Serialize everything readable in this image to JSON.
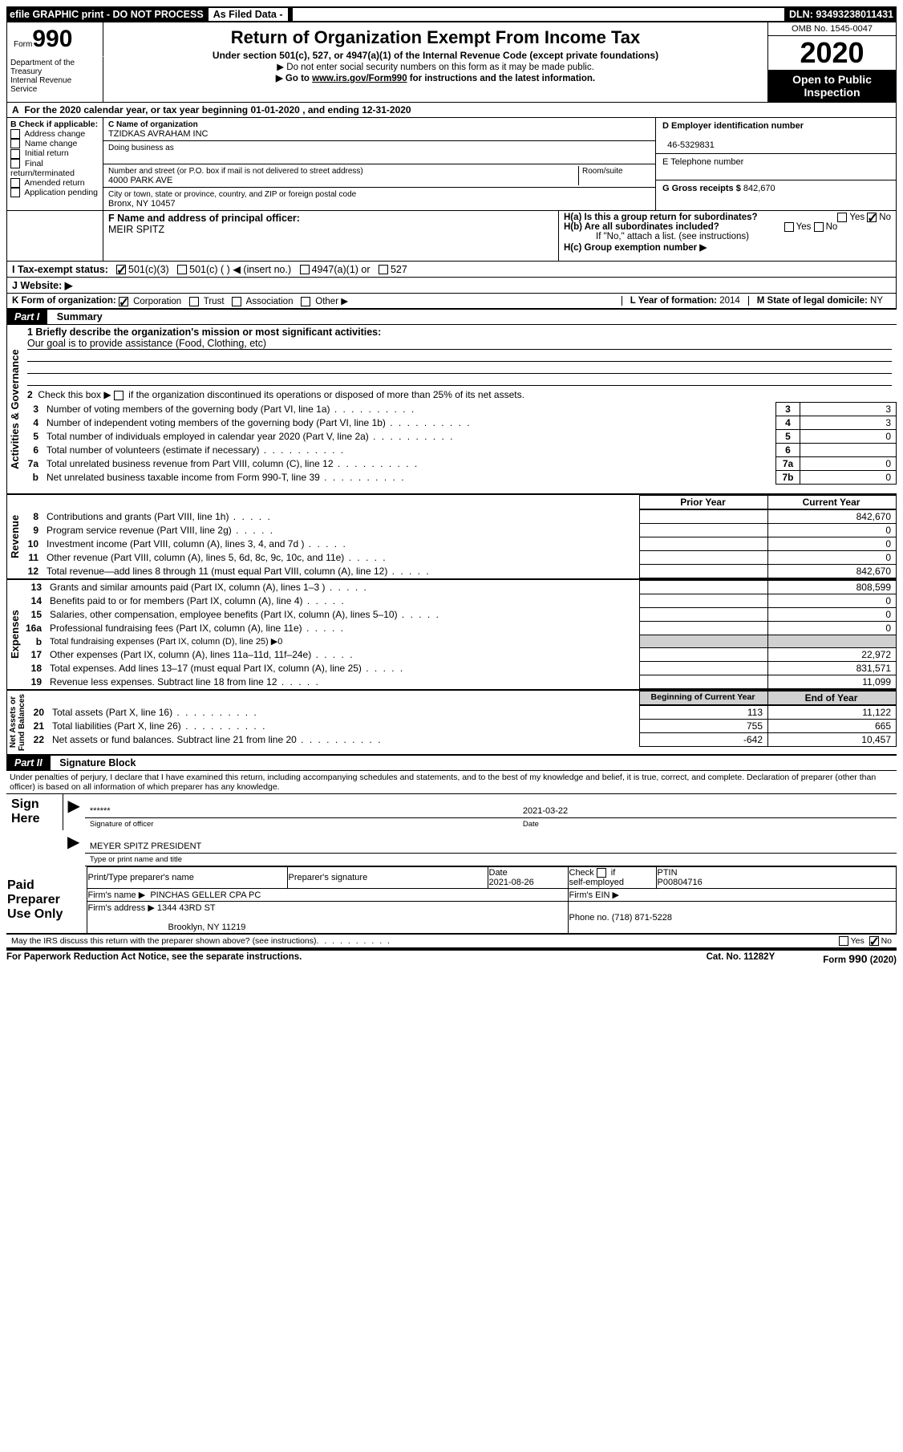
{
  "topbar": {
    "efile": "efile GRAPHIC print - DO NOT PROCESS",
    "asfiled": "As Filed Data -",
    "dln_label": "DLN:",
    "dln": "93493238011431"
  },
  "header": {
    "form_small": "Form",
    "form_big": "990",
    "dept": "Department of the Treasury\nInternal Revenue Service",
    "title": "Return of Organization Exempt From Income Tax",
    "sub1": "Under section 501(c), 527, or 4947(a)(1) of the Internal Revenue Code (except private foundations)",
    "sub2": "▶ Do not enter social security numbers on this form as it may be made public.",
    "sub3_pre": "▶ Go to ",
    "sub3_link": "www.irs.gov/Form990",
    "sub3_post": " for instructions and the latest information.",
    "omb": "OMB No. 1545-0047",
    "year": "2020",
    "open": "Open to Public Inspection"
  },
  "A": {
    "text_pre": "For the 2020 calendar year, or tax year beginning ",
    "begin": "01-01-2020",
    "mid": " , and ending ",
    "end": "12-31-2020"
  },
  "B": {
    "label": "B Check if applicable:",
    "opts": [
      "Address change",
      "Name change",
      "Initial return",
      "Final return/terminated",
      "Amended return",
      "Application pending"
    ]
  },
  "C": {
    "name_label": "C Name of organization",
    "name": "TZIDKAS AVRAHAM INC",
    "dba_label": "Doing business as",
    "dba": "",
    "street_label": "Number and street (or P.O. box if mail is not delivered to street address)",
    "room_label": "Room/suite",
    "street": "4000 PARK AVE",
    "city_label": "City or town, state or province, country, and ZIP or foreign postal code",
    "city": "Bronx, NY  10457"
  },
  "D": {
    "label": "D Employer identification number",
    "val": "46-5329831"
  },
  "E": {
    "label": "E Telephone number",
    "val": ""
  },
  "G": {
    "label": "G Gross receipts $",
    "val": "842,670"
  },
  "F": {
    "label": "F  Name and address of principal officer:",
    "val": "MEIR SPITZ"
  },
  "H": {
    "a": "H(a)  Is this a group return for subordinates?",
    "a_yes": "Yes",
    "a_no": "No",
    "a_checked": "no",
    "b": "H(b)  Are all subordinates included?",
    "b_yes": "Yes",
    "b_no": "No",
    "b_note": "If \"No,\" attach a list. (see instructions)",
    "c": "H(c)  Group exemption number ▶"
  },
  "I": {
    "label": "I   Tax-exempt status:",
    "opt1": "501(c)(3)",
    "opt1_checked": true,
    "opt2": "501(c) (   ) ◀ (insert no.)",
    "opt3": "4947(a)(1) or",
    "opt4": "527"
  },
  "J": {
    "label": "J   Website: ▶"
  },
  "K": {
    "label": "K Form of organization:",
    "opts": [
      "Corporation",
      "Trust",
      "Association",
      "Other ▶"
    ],
    "checked": 0
  },
  "L": {
    "label": "L Year of formation:",
    "val": "2014"
  },
  "M": {
    "label": "M State of legal domicile:",
    "val": "NY"
  },
  "partI": {
    "label": "Part I",
    "title": "Summary"
  },
  "summary": {
    "line1_label": "1  Briefly describe the organization's mission or most significant activities:",
    "line1_val": "Our goal is to provide assistance (Food, Clothing, etc)",
    "line2": "2   Check this box ▶      if the organization discontinued its operations or disposed of more than 25% of its net assets.",
    "lines_gov": [
      {
        "n": "3",
        "t": "Number of voting members of the governing body (Part VI, line 1a)",
        "ref": "3",
        "v": "3"
      },
      {
        "n": "4",
        "t": "Number of independent voting members of the governing body (Part VI, line 1b)",
        "ref": "4",
        "v": "3"
      },
      {
        "n": "5",
        "t": "Total number of individuals employed in calendar year 2020 (Part V, line 2a)",
        "ref": "5",
        "v": "0"
      },
      {
        "n": "6",
        "t": "Total number of volunteers (estimate if necessary)",
        "ref": "6",
        "v": ""
      },
      {
        "n": "7a",
        "t": "Total unrelated business revenue from Part VIII, column (C), line 12",
        "ref": "7a",
        "v": "0"
      },
      {
        "n": "b",
        "t": "Net unrelated business taxable income from Form 990-T, line 39",
        "ref": "7b",
        "v": "0"
      }
    ],
    "prior": "Prior Year",
    "current": "Current Year",
    "revenue": [
      {
        "n": "8",
        "t": "Contributions and grants (Part VIII, line 1h)",
        "p": "",
        "c": "842,670"
      },
      {
        "n": "9",
        "t": "Program service revenue (Part VIII, line 2g)",
        "p": "",
        "c": "0"
      },
      {
        "n": "10",
        "t": "Investment income (Part VIII, column (A), lines 3, 4, and 7d )",
        "p": "",
        "c": "0"
      },
      {
        "n": "11",
        "t": "Other revenue (Part VIII, column (A), lines 5, 6d, 8c, 9c, 10c, and 11e)",
        "p": "",
        "c": "0"
      },
      {
        "n": "12",
        "t": "Total revenue—add lines 8 through 11 (must equal Part VIII, column (A), line 12)",
        "p": "",
        "c": "842,670"
      }
    ],
    "expenses": [
      {
        "n": "13",
        "t": "Grants and similar amounts paid (Part IX, column (A), lines 1–3 )",
        "p": "",
        "c": "808,599"
      },
      {
        "n": "14",
        "t": "Benefits paid to or for members (Part IX, column (A), line 4)",
        "p": "",
        "c": "0"
      },
      {
        "n": "15",
        "t": "Salaries, other compensation, employee benefits (Part IX, column (A), lines 5–10)",
        "p": "",
        "c": "0"
      },
      {
        "n": "16a",
        "t": "Professional fundraising fees (Part IX, column (A), line 11e)",
        "p": "",
        "c": "0"
      },
      {
        "n": "b",
        "t": "Total fundraising expenses (Part IX, column (D), line 25) ▶0",
        "p": "grey",
        "c": "grey"
      },
      {
        "n": "17",
        "t": "Other expenses (Part IX, column (A), lines 11a–11d, 11f–24e)",
        "p": "",
        "c": "22,972"
      },
      {
        "n": "18",
        "t": "Total expenses. Add lines 13–17 (must equal Part IX, column (A), line 25)",
        "p": "",
        "c": "831,571"
      },
      {
        "n": "19",
        "t": "Revenue less expenses. Subtract line 18 from line 12",
        "p": "",
        "c": "11,099"
      }
    ],
    "by": "Beginning of Current Year",
    "ey": "End of Year",
    "netassets": [
      {
        "n": "20",
        "t": "Total assets (Part X, line 16)",
        "p": "113",
        "c": "11,122"
      },
      {
        "n": "21",
        "t": "Total liabilities (Part X, line 26)",
        "p": "755",
        "c": "665"
      },
      {
        "n": "22",
        "t": "Net assets or fund balances. Subtract line 21 from line 20",
        "p": "-642",
        "c": "10,457"
      }
    ]
  },
  "sidelabels": {
    "gov": "Activities & Governance",
    "rev": "Revenue",
    "exp": "Expenses",
    "net": "Net Assets or\nFund Balances"
  },
  "partII": {
    "label": "Part II",
    "title": "Signature Block",
    "decl": "Under penalties of perjury, I declare that I have examined this return, including accompanying schedules and statements, and to the best of my knowledge and belief, it is true, correct, and complete. Declaration of preparer (other than officer) is based on all information of which preparer has any knowledge."
  },
  "sign": {
    "here": "Sign Here",
    "stars": "******",
    "sig_label": "Signature of officer",
    "date": "2021-03-22",
    "date_label": "Date",
    "name": "MEYER SPITZ  PRESIDENT",
    "name_label": "Type or print name and title"
  },
  "paid": {
    "label": "Paid Preparer Use Only",
    "h1": "Print/Type preparer's name",
    "h2": "Preparer's signature",
    "h3": "Date",
    "h3v": "2021-08-26",
    "h4": "Check      if self-employed",
    "h5": "PTIN",
    "h5v": "P00804716",
    "firm_label": "Firm's name   ▶",
    "firm": "PINCHAS GELLER CPA PC",
    "ein_label": "Firm's EIN ▶",
    "addr_label": "Firm's address ▶",
    "addr1": "1344 43RD ST",
    "addr2": "Brooklyn, NY  11219",
    "phone_label": "Phone no.",
    "phone": "(718) 871-5228"
  },
  "bottom": {
    "q": "May the IRS discuss this return with the preparer shown above? (see instructions)",
    "yes": "Yes",
    "no": "No",
    "checked": "no",
    "paperwork": "For Paperwork Reduction Act Notice, see the separate instructions.",
    "cat": "Cat. No. 11282Y",
    "form": "Form 990 (2020)"
  }
}
